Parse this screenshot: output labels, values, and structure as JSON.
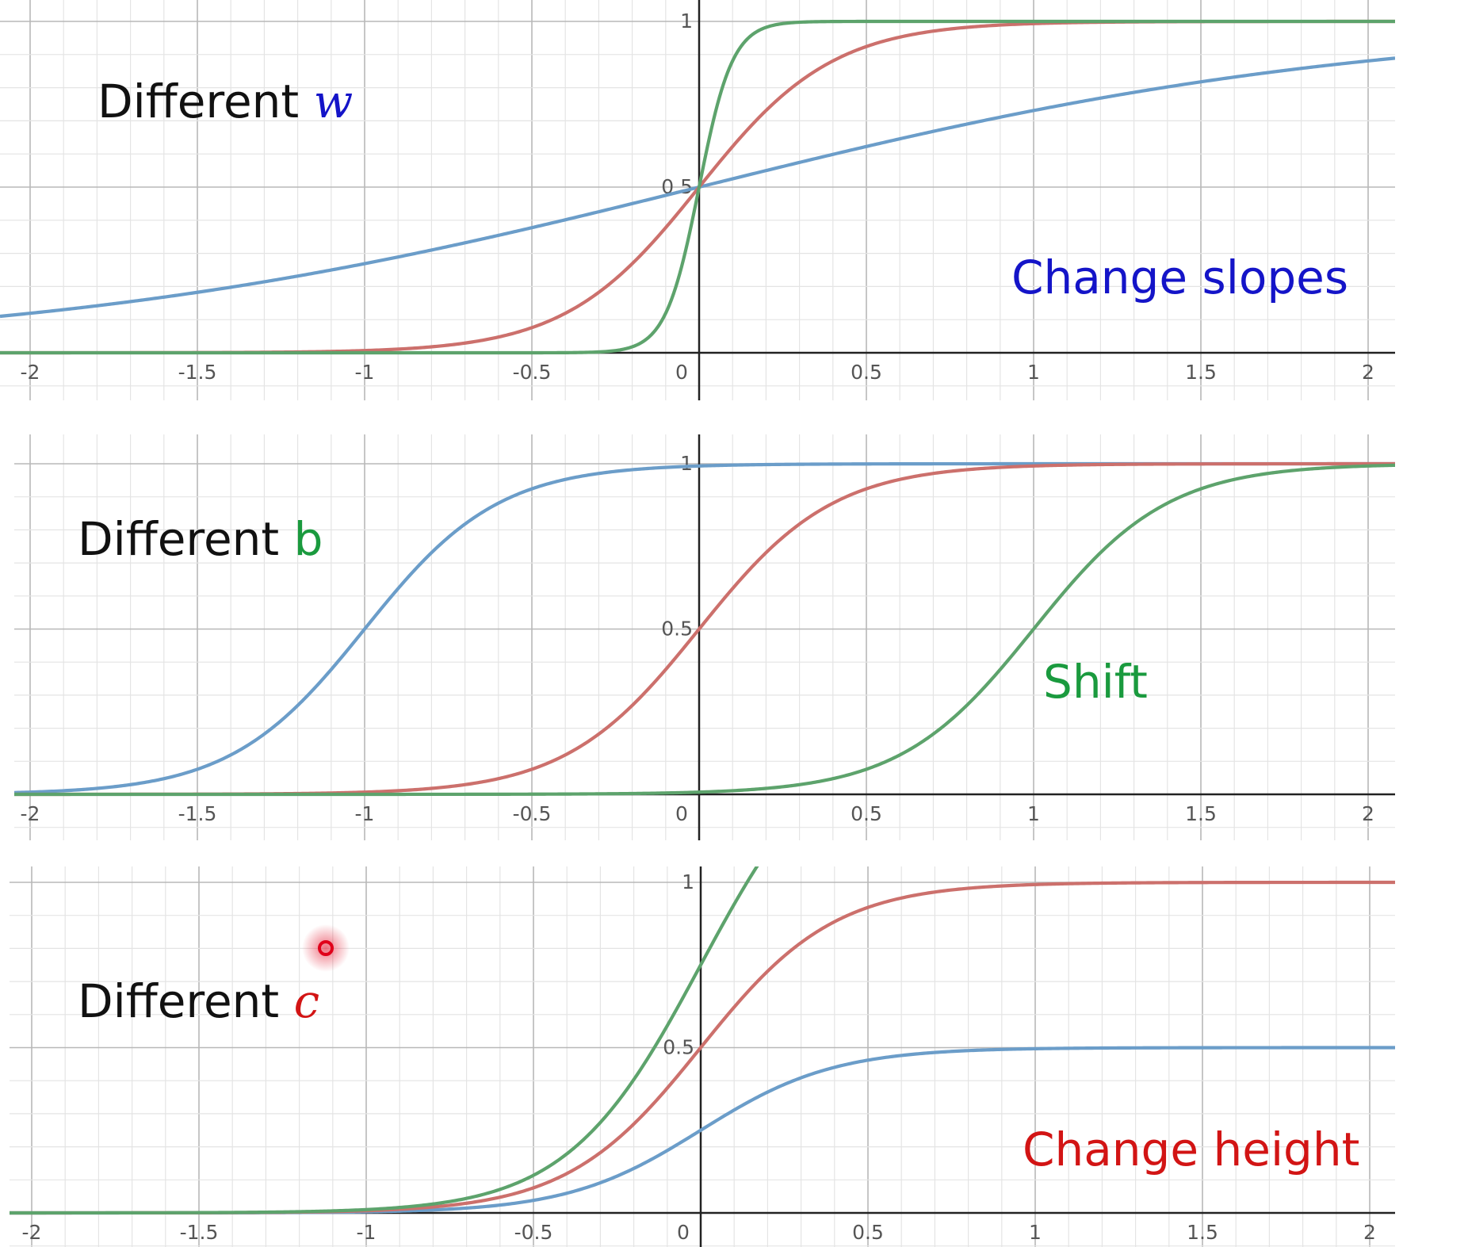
{
  "colors": {
    "blue": "#6b9dc9",
    "red": "#cc706c",
    "green": "#5da36c",
    "text_black": "#111111",
    "text_blue": "#1414c8",
    "text_green": "#1a9a3e",
    "text_red": "#d21414",
    "axis": "#222222",
    "grid_major": "#b8b8b8",
    "grid_minor": "#e4e4e4",
    "cursor": "#e0001a"
  },
  "chart_data": [
    {
      "type": "line",
      "title": "Different w",
      "title_prefix": "Different",
      "title_var": "w",
      "title_var_style": "italic",
      "title_var_color": "text_blue",
      "annotation": "Change slopes",
      "annotation_color": "text_blue",
      "xlim": [
        -2.07,
        2.07
      ],
      "ylim": [
        -0.15,
        1.05
      ],
      "x_ticks": [
        -2,
        -1.5,
        -1,
        -0.5,
        0,
        0.5,
        1,
        1.5,
        2
      ],
      "x_tick_labels": [
        "-2",
        "-1.5",
        "-1",
        "-0.5",
        "0",
        "0.5",
        "1",
        "1.5",
        "2"
      ],
      "y_ticks": [
        0.5,
        1
      ],
      "y_tick_labels": [
        "0.5",
        "1"
      ],
      "grid": true,
      "series": [
        {
          "color": "blue",
          "function": "sigmoid",
          "c": 1,
          "w": 1,
          "b": 0,
          "sample": {
            "x": [
              -2,
              -1,
              0,
              1,
              2
            ],
            "y": [
              0.12,
              0.27,
              0.5,
              0.73,
              0.88
            ]
          }
        },
        {
          "color": "red",
          "function": "sigmoid",
          "c": 1,
          "w": 5,
          "b": 0,
          "sample": {
            "x": [
              -1,
              -0.5,
              0,
              0.5,
              1
            ],
            "y": [
              0.01,
              0.08,
              0.5,
              0.92,
              0.99
            ]
          }
        },
        {
          "color": "green",
          "function": "sigmoid",
          "c": 1,
          "w": 20,
          "b": 0,
          "sample": {
            "x": [
              -0.25,
              -0.1,
              0,
              0.1,
              0.25
            ],
            "y": [
              0.01,
              0.12,
              0.5,
              0.88,
              0.99
            ]
          }
        }
      ]
    },
    {
      "type": "line",
      "title": "Different b",
      "title_prefix": "Different",
      "title_var": "b",
      "title_var_style": "upright",
      "title_var_color": "text_green",
      "annotation": "Shift",
      "annotation_color": "text_green",
      "xlim": [
        -2.07,
        2.07
      ],
      "ylim": [
        -0.15,
        1.05
      ],
      "x_ticks": [
        -2,
        -1.5,
        -1,
        -0.5,
        0,
        0.5,
        1,
        1.5,
        2
      ],
      "x_tick_labels": [
        "-2",
        "-1.5",
        "-1",
        "-0.5",
        "0",
        "0.5",
        "1",
        "1.5",
        "2"
      ],
      "y_ticks": [
        0.5,
        1
      ],
      "y_tick_labels": [
        "0.5",
        "1"
      ],
      "grid": true,
      "series": [
        {
          "color": "blue",
          "function": "sigmoid",
          "c": 1,
          "w": 5,
          "b": 5,
          "sample": {
            "x": [
              -1.5,
              -1,
              -0.5
            ],
            "y": [
              0.08,
              0.5,
              0.92
            ]
          }
        },
        {
          "color": "red",
          "function": "sigmoid",
          "c": 1,
          "w": 5,
          "b": 0,
          "sample": {
            "x": [
              -0.5,
              0,
              0.5
            ],
            "y": [
              0.08,
              0.5,
              0.92
            ]
          }
        },
        {
          "color": "green",
          "function": "sigmoid",
          "c": 1,
          "w": 5,
          "b": -5,
          "sample": {
            "x": [
              0.5,
              1,
              1.5
            ],
            "y": [
              0.08,
              0.5,
              0.92
            ]
          }
        }
      ]
    },
    {
      "type": "line",
      "title": "Different c",
      "title_prefix": "Different",
      "title_var": "c",
      "title_var_style": "italic",
      "title_var_color": "text_red",
      "annotation": "Change height",
      "annotation_color": "text_red",
      "xlim": [
        -2.07,
        2.07
      ],
      "ylim": [
        -0.15,
        1.05
      ],
      "x_ticks": [
        -2,
        -1.5,
        -1,
        -0.5,
        0,
        0.5,
        1,
        1.5,
        2
      ],
      "x_tick_labels": [
        "-2",
        "-1.5",
        "-1",
        "-0.5",
        "0",
        "0.5",
        "1",
        "1.5",
        "2"
      ],
      "y_ticks": [
        0.5,
        1
      ],
      "y_tick_labels": [
        "0.5",
        "1"
      ],
      "grid": true,
      "series": [
        {
          "color": "blue",
          "function": "sigmoid",
          "c": 0.5,
          "w": 5,
          "b": 0,
          "sample": {
            "x": [
              -0.5,
              0,
              0.5,
              1
            ],
            "y": [
              0.04,
              0.25,
              0.46,
              0.5
            ]
          }
        },
        {
          "color": "red",
          "function": "sigmoid",
          "c": 1,
          "w": 5,
          "b": 0,
          "sample": {
            "x": [
              -0.5,
              0,
              0.5,
              1
            ],
            "y": [
              0.08,
              0.5,
              0.92,
              0.99
            ]
          }
        },
        {
          "color": "green",
          "function": "sigmoid",
          "c": 1.5,
          "w": 5,
          "b": 0,
          "sample": {
            "x": [
              -0.5,
              0,
              0.15
            ],
            "y": [
              0.11,
              0.75,
              1.0
            ]
          }
        }
      ]
    }
  ]
}
